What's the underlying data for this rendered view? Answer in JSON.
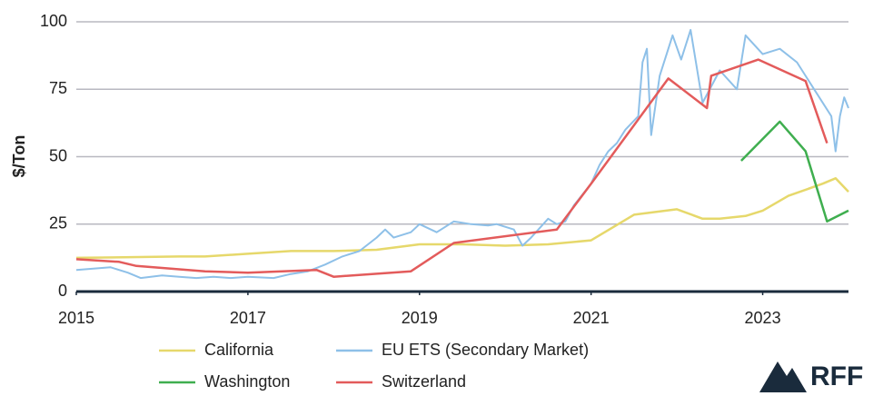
{
  "chart_data": {
    "type": "line",
    "y_label": "$/Ton",
    "xlim": [
      2015,
      2024
    ],
    "xticks": [
      2015,
      2017,
      2019,
      2021,
      2023
    ],
    "ylim": [
      0,
      100
    ],
    "yticks": [
      0,
      25,
      50,
      75,
      100
    ],
    "grid": true,
    "series": [
      {
        "name": "California",
        "color": "#e6d86b",
        "x": [
          2015,
          2016.2,
          2016.5,
          2017,
          2017.5,
          2018,
          2018.5,
          2019,
          2019.5,
          2020,
          2020.5,
          2021,
          2021.5,
          2022,
          2022.3,
          2022.5,
          2022.8,
          2023,
          2023.3,
          2023.7,
          2023.85,
          2024
        ],
        "values": [
          12.5,
          13,
          13,
          14,
          15,
          15,
          15.5,
          17.5,
          17.5,
          17,
          17.5,
          19,
          28.5,
          30.5,
          27,
          27,
          28,
          30,
          35.5,
          40,
          42,
          37
        ]
      },
      {
        "name": "EU ETS (Secondary Market)",
        "color": "#8ec0e8",
        "x": [
          2015,
          2015.2,
          2015.4,
          2015.6,
          2015.75,
          2016,
          2016.2,
          2016.4,
          2016.6,
          2016.8,
          2017,
          2017.3,
          2017.5,
          2017.7,
          2017.9,
          2018.1,
          2018.3,
          2018.5,
          2018.6,
          2018.7,
          2018.9,
          2019,
          2019.2,
          2019.4,
          2019.6,
          2019.8,
          2019.9,
          2020.1,
          2020.2,
          2020.3,
          2020.5,
          2020.6,
          2020.7,
          2020.8,
          2021,
          2021.1,
          2021.2,
          2021.3,
          2021.4,
          2021.55,
          2021.6,
          2021.65,
          2021.7,
          2021.8,
          2021.95,
          2022.05,
          2022.16,
          2022.3,
          2022.5,
          2022.7,
          2022.8,
          2023,
          2023.2,
          2023.4,
          2023.6,
          2023.8,
          2023.85,
          2023.9,
          2023.95,
          2024
        ],
        "values": [
          8,
          8.5,
          9,
          7,
          5,
          6,
          5.5,
          5,
          5.5,
          5,
          5.5,
          5,
          6.5,
          7.5,
          10,
          13,
          15,
          20,
          23,
          20,
          22,
          25,
          22,
          26,
          25,
          24.5,
          25,
          23,
          17,
          20,
          27,
          25,
          26,
          32,
          40,
          47,
          52,
          55,
          60,
          65,
          85,
          90,
          58,
          80,
          95,
          86,
          97,
          70,
          82,
          75,
          95,
          88,
          90,
          85,
          75,
          65,
          52,
          65,
          72,
          68
        ]
      },
      {
        "name": "Washington",
        "color": "#3fae4f",
        "x": [
          2022.75,
          2023.2,
          2023.5,
          2023.75,
          2024
        ],
        "values": [
          48.5,
          63,
          52,
          26,
          30
        ]
      },
      {
        "name": "Switzerland",
        "color": "#e35b5b",
        "x": [
          2015,
          2015.5,
          2015.7,
          2016.5,
          2017,
          2017.8,
          2018,
          2018.9,
          2019.4,
          2020.6,
          2021,
          2021.9,
          2022.35,
          2022.4,
          2022.95,
          2023.5,
          2023.75
        ],
        "values": [
          12,
          11,
          9.5,
          7.5,
          7,
          8,
          5.5,
          7.5,
          18,
          23,
          40,
          79,
          68,
          80,
          86,
          78,
          55
        ]
      }
    ]
  },
  "logo": "RFF"
}
